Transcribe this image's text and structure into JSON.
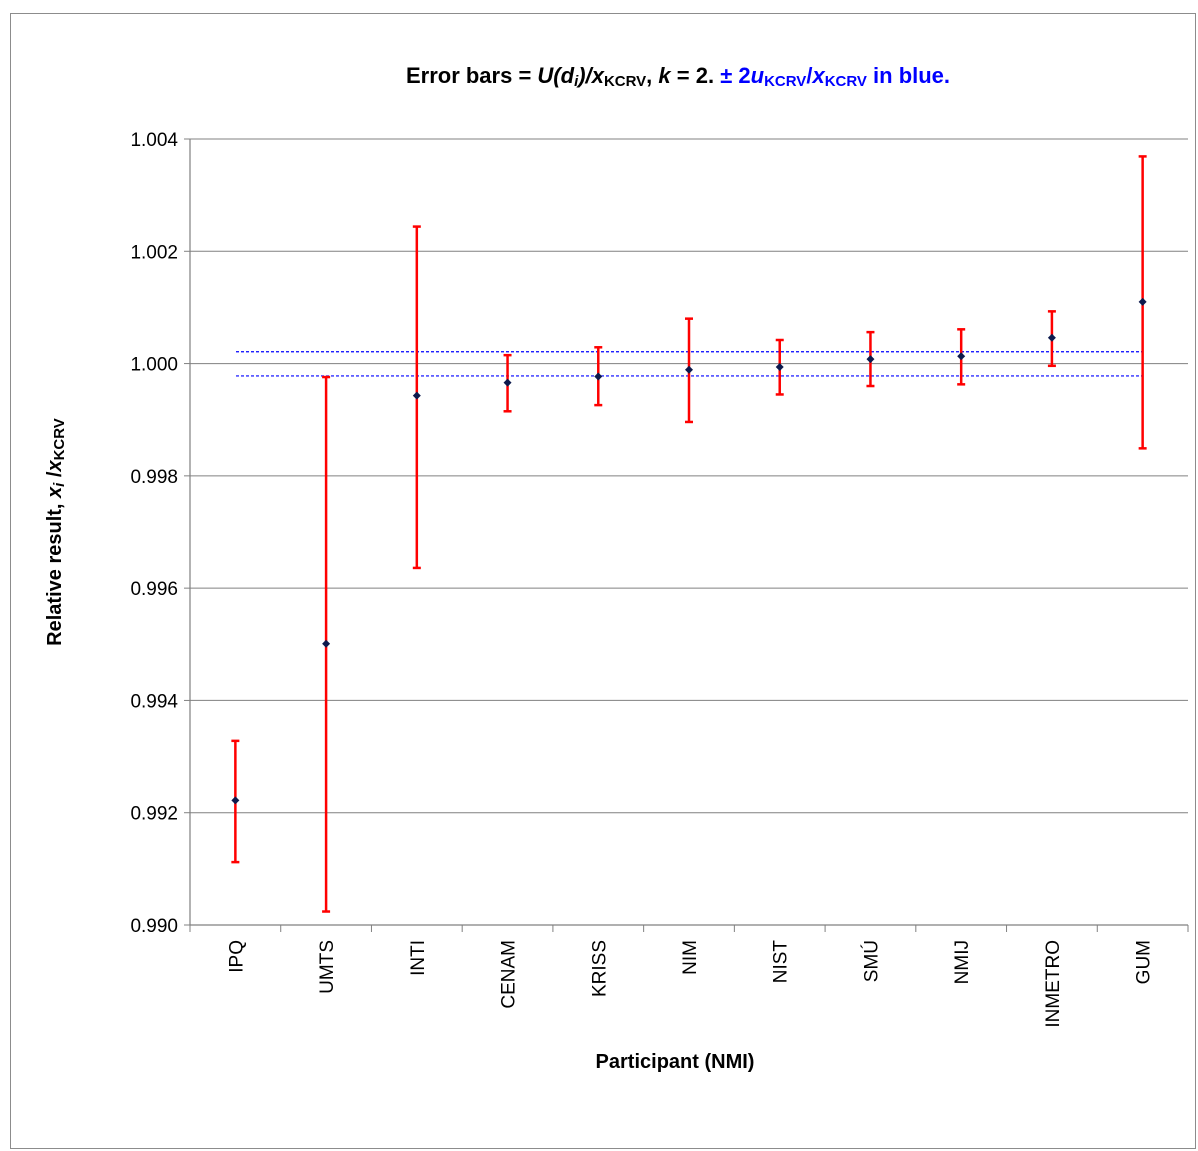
{
  "chart_data": {
    "type": "scatter",
    "title": {
      "line": [
        {
          "t": "Error bars = ",
          "i": false,
          "sub": false,
          "color": "#000000"
        },
        {
          "t": "U(d",
          "i": true,
          "sub": false,
          "color": "#000000"
        },
        {
          "t": "i",
          "i": true,
          "sub": true,
          "color": "#000000"
        },
        {
          "t": ")/",
          "i": true,
          "sub": false,
          "color": "#000000"
        },
        {
          "t": "x",
          "i": true,
          "sub": false,
          "color": "#000000"
        },
        {
          "t": "KCRV",
          "i": false,
          "sub": true,
          "color": "#000000"
        },
        {
          "t": ", ",
          "i": false,
          "sub": false,
          "color": "#000000"
        },
        {
          "t": "k",
          "i": true,
          "sub": false,
          "color": "#000000"
        },
        {
          "t": " = 2.  ",
          "i": false,
          "sub": false,
          "color": "#000000"
        },
        {
          "t": "± 2",
          "i": false,
          "sub": false,
          "color": "#0000ff"
        },
        {
          "t": "u",
          "i": true,
          "sub": false,
          "color": "#0000ff"
        },
        {
          "t": "KCRV",
          "i": false,
          "sub": true,
          "color": "#0000ff"
        },
        {
          "t": "/",
          "i": false,
          "sub": false,
          "color": "#0000ff"
        },
        {
          "t": "x",
          "i": true,
          "sub": false,
          "color": "#0000ff"
        },
        {
          "t": "KCRV",
          "i": false,
          "sub": true,
          "color": "#0000ff"
        },
        {
          "t": " in blue.",
          "i": false,
          "sub": false,
          "color": "#0000ff"
        }
      ]
    },
    "xlabel": "Participant (NMI)",
    "ylabel": {
      "line": [
        {
          "t": "Relative result, ",
          "i": false,
          "sub": false
        },
        {
          "t": "x",
          "i": true,
          "sub": false
        },
        {
          "t": "i",
          "i": true,
          "sub": true
        },
        {
          "t": " /",
          "i": false,
          "sub": false
        },
        {
          "t": "x",
          "i": true,
          "sub": false
        },
        {
          "t": "KCRV",
          "i": false,
          "sub": true
        }
      ]
    },
    "ylim": [
      0.99,
      1.004
    ],
    "yticks": [
      0.99,
      0.992,
      0.994,
      0.996,
      0.998,
      1.0,
      1.002,
      1.004
    ],
    "ytick_labels": [
      "0.990",
      "0.992",
      "0.994",
      "0.996",
      "0.998",
      "1.000",
      "1.002",
      "1.004"
    ],
    "grid": "horizontal",
    "categories": [
      "IPQ",
      "UMTS",
      "INTI",
      "CENAM",
      "KRISS",
      "NIM",
      "NIST",
      "SMÚ",
      "NMIJ",
      "INMETRO",
      "GUM"
    ],
    "values": [
      0.99222,
      0.99501,
      0.99943,
      0.99966,
      0.99977,
      0.99989,
      0.99994,
      1.00008,
      1.00013,
      1.00046,
      1.0011
    ],
    "err_low": [
      0.99112,
      0.99024,
      0.99636,
      0.99915,
      0.99926,
      0.99896,
      0.99945,
      0.9996,
      0.99963,
      0.99996,
      0.99849
    ],
    "err_high": [
      0.99328,
      0.99976,
      1.00244,
      1.00015,
      1.00029,
      1.0008,
      1.00042,
      1.00056,
      1.00061,
      1.00093,
      1.00369
    ],
    "kcrv_band": [
      0.99978,
      1.00021
    ],
    "colors": {
      "marker": "#0d1a4d",
      "errorbar": "#ff0000",
      "band": "#0000ff",
      "grid": "#808080",
      "axis": "#808080"
    }
  }
}
